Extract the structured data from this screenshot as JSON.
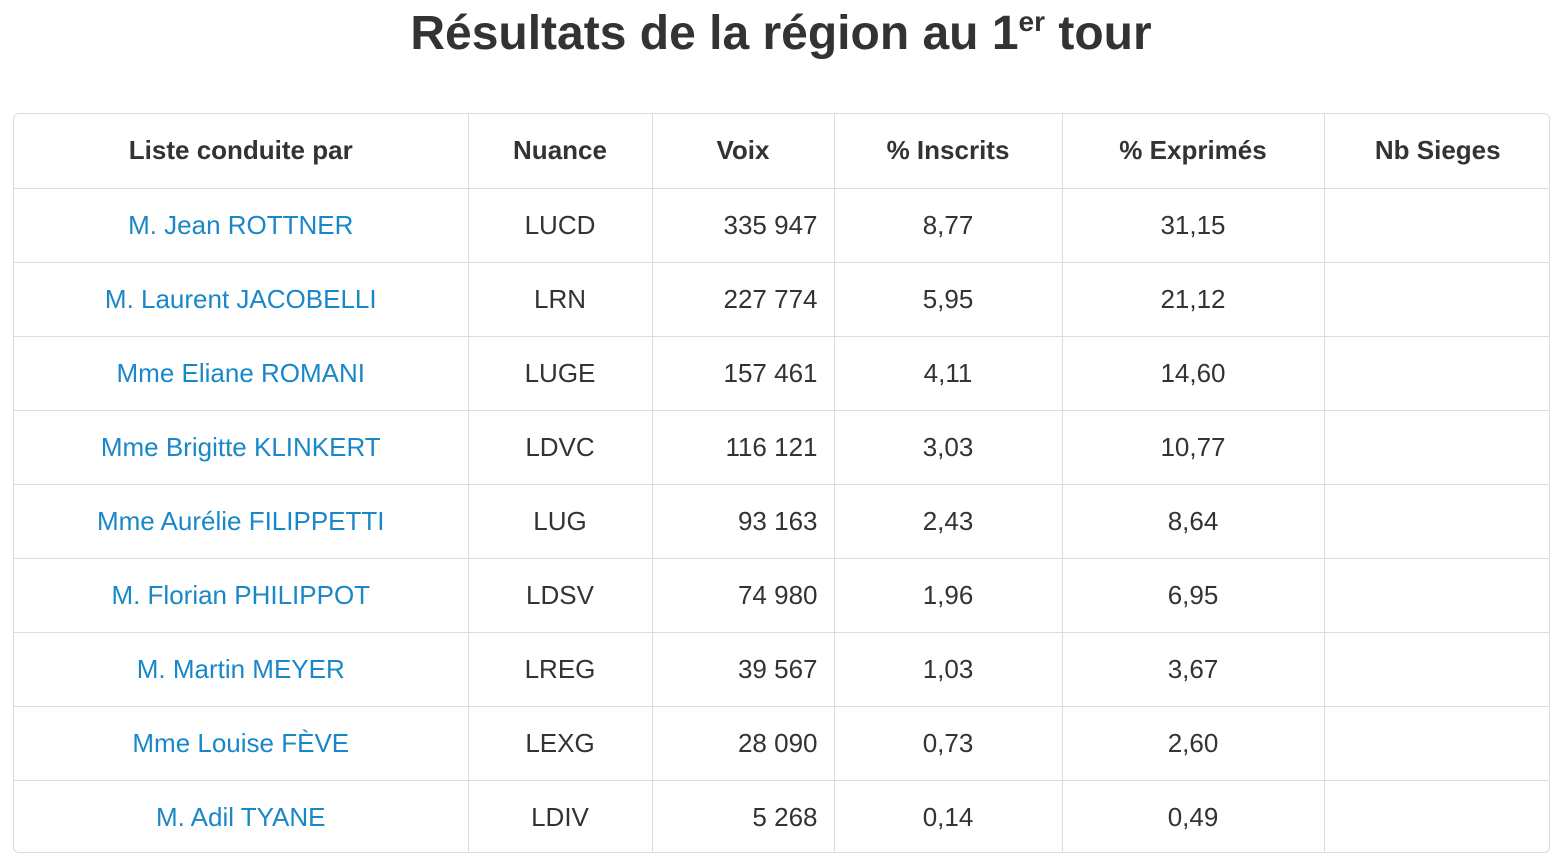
{
  "page": {
    "title_main": "Résultats de la région au 1",
    "title_sup": "er",
    "title_end": " tour"
  },
  "table": {
    "headers": [
      "Liste conduite par",
      "Nuance",
      "Voix",
      "% Inscrits",
      "% Exprimés",
      "Nb Sieges"
    ],
    "rows": [
      {
        "name": "M. Jean ROTTNER",
        "nuance": "LUCD",
        "voix": "335 947",
        "inscrits": "8,77",
        "exprimes": "31,15",
        "sieges": ""
      },
      {
        "name": "M. Laurent JACOBELLI",
        "nuance": "LRN",
        "voix": "227 774",
        "inscrits": "5,95",
        "exprimes": "21,12",
        "sieges": ""
      },
      {
        "name": "Mme Eliane ROMANI",
        "nuance": "LUGE",
        "voix": "157 461",
        "inscrits": "4,11",
        "exprimes": "14,60",
        "sieges": ""
      },
      {
        "name": "Mme Brigitte KLINKERT",
        "nuance": "LDVC",
        "voix": "116 121",
        "inscrits": "3,03",
        "exprimes": "10,77",
        "sieges": ""
      },
      {
        "name": "Mme Aurélie FILIPPETTI",
        "nuance": "LUG",
        "voix": "93 163",
        "inscrits": "2,43",
        "exprimes": "8,64",
        "sieges": ""
      },
      {
        "name": "M. Florian PHILIPPOT",
        "nuance": "LDSV",
        "voix": "74 980",
        "inscrits": "1,96",
        "exprimes": "6,95",
        "sieges": ""
      },
      {
        "name": "M. Martin MEYER",
        "nuance": "LREG",
        "voix": "39 567",
        "inscrits": "1,03",
        "exprimes": "3,67",
        "sieges": ""
      },
      {
        "name": "Mme Louise FÈVE",
        "nuance": "LEXG",
        "voix": "28 090",
        "inscrits": "0,73",
        "exprimes": "2,60",
        "sieges": ""
      },
      {
        "name": "M. Adil TYANE",
        "nuance": "LDIV",
        "voix": "5 268",
        "inscrits": "0,14",
        "exprimes": "0,49",
        "sieges": ""
      }
    ]
  },
  "colors": {
    "text": "#333333",
    "link": "#1a87c8",
    "border": "#dddddd"
  }
}
